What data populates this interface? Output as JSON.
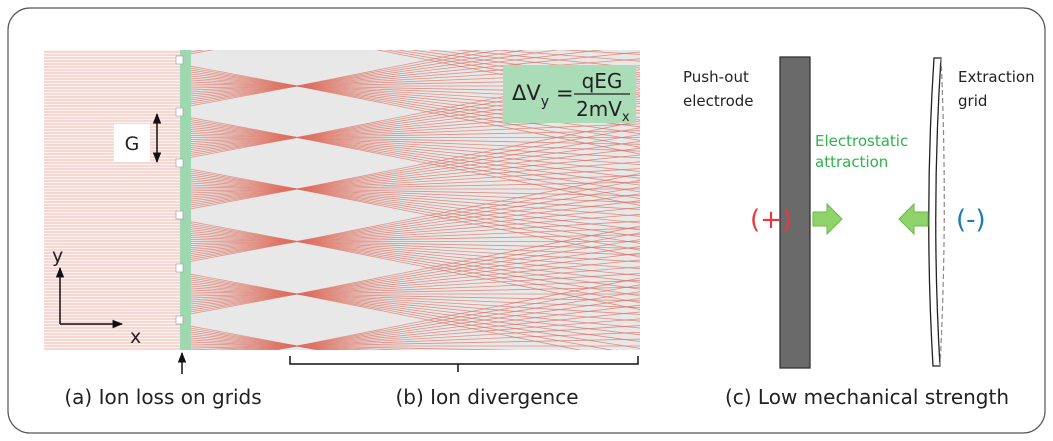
{
  "left_panel": {
    "grid_spacing_label": "G",
    "axis_y": "y",
    "axis_x": "x",
    "formula": {
      "lhs": "ΔV",
      "lhs_sub": "y",
      "equals": "=",
      "numerator": "qEG",
      "denominator": "2mV",
      "denominator_sub": "x"
    }
  },
  "captions": [
    "(a) Ion loss on grids",
    "(b) Ion divergence",
    "(c) Low mechanical strength"
  ],
  "right_panel": {
    "pushout": [
      "Push-out",
      "electrode"
    ],
    "extraction": [
      "Extraction",
      "grid"
    ],
    "attraction": [
      "Electrostatic",
      "attraction"
    ],
    "plus": "(+)",
    "minus": "(-)"
  }
}
